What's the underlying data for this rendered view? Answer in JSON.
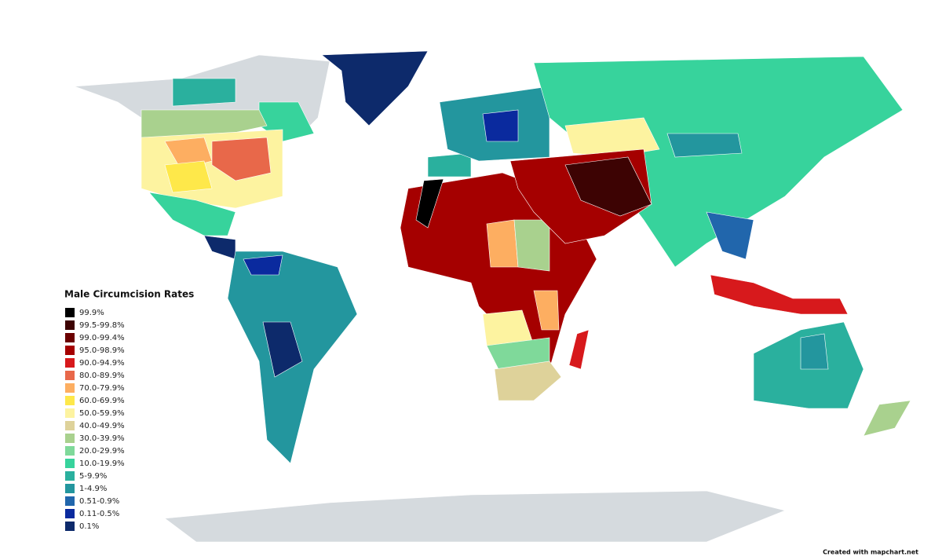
{
  "legend": {
    "title": "Male Circumcision Rates",
    "items": [
      {
        "label": "99.9%",
        "color": "#000000"
      },
      {
        "label": "99.5-99.8%",
        "color": "#3d0303"
      },
      {
        "label": "99.0-99.4%",
        "color": "#6b0000"
      },
      {
        "label": "95.0-98.9%",
        "color": "#a50000"
      },
      {
        "label": "90.0-94.9%",
        "color": "#d7191c"
      },
      {
        "label": "80.0-89.9%",
        "color": "#e8684a"
      },
      {
        "label": "70.0-79.9%",
        "color": "#fdae61"
      },
      {
        "label": "60.0-69.9%",
        "color": "#fee84a"
      },
      {
        "label": "50.0-59.9%",
        "color": "#fdf3a0"
      },
      {
        "label": "40.0-49.9%",
        "color": "#ded29a"
      },
      {
        "label": "30.0-39.9%",
        "color": "#a9d18e"
      },
      {
        "label": "20.0-29.9%",
        "color": "#7fd99a"
      },
      {
        "label": "10.0-19.9%",
        "color": "#37d39c"
      },
      {
        "label": "5-9.9%",
        "color": "#2ab09e"
      },
      {
        "label": "1-4.9%",
        "color": "#23969e"
      },
      {
        "label": "0.51-0.9%",
        "color": "#2166ac"
      },
      {
        "label": "0.11-0.5%",
        "color": "#0a2a9e"
      },
      {
        "label": "0.1%",
        "color": "#0d2a6b"
      }
    ]
  },
  "footer": "Created with mapchart.net"
}
